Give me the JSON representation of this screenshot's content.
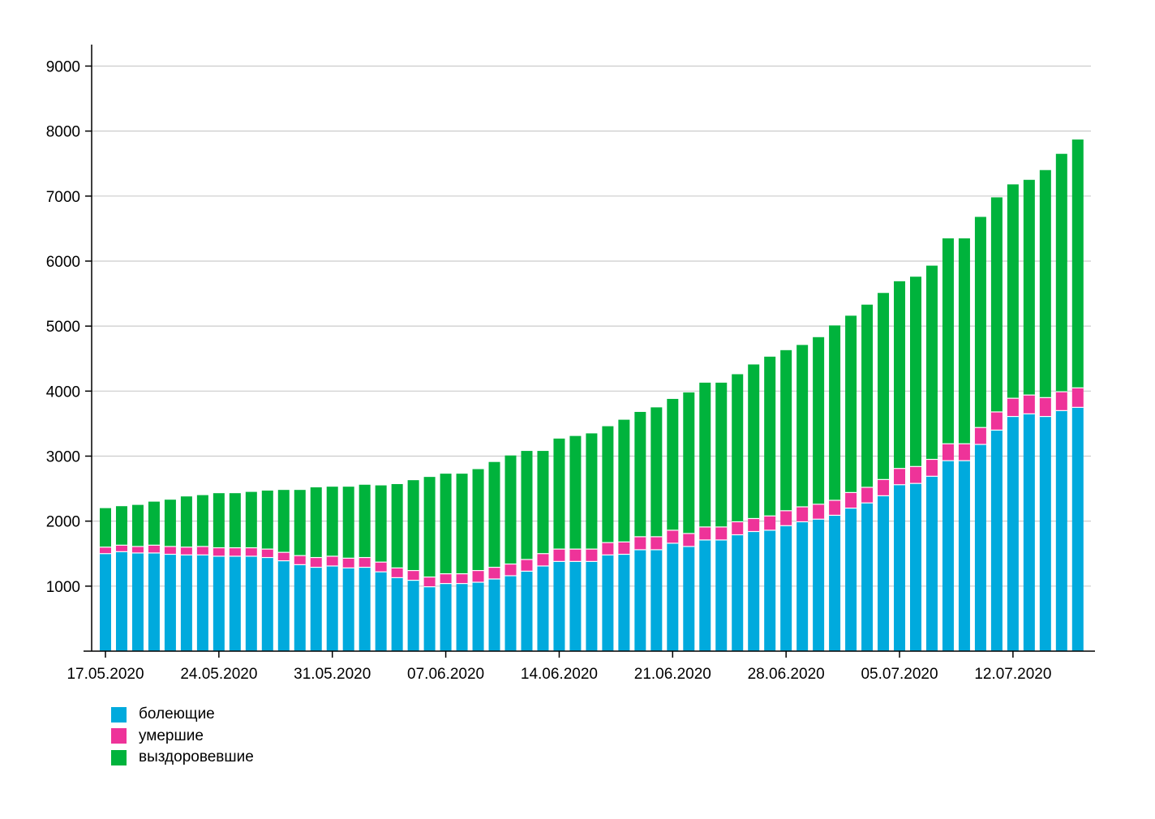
{
  "chart_data": {
    "type": "bar",
    "stacked": true,
    "title": "",
    "xlabel": "",
    "ylabel": "",
    "ylim": [
      0,
      9500
    ],
    "yticks": [
      1000,
      2000,
      3000,
      4000,
      5000,
      6000,
      7000,
      8000,
      9000
    ],
    "grid": "horizontal",
    "legend_position": "bottom-left",
    "x_tick_labels": [
      "17.05.2020",
      "24.05.2020",
      "31.05.2020",
      "07.06.2020",
      "14.06.2020",
      "21.06.2020",
      "28.06.2020",
      "05.07.2020",
      "12.07.2020"
    ],
    "x_tick_every": 7,
    "categories": [
      "17.05.2020",
      "18.05.2020",
      "19.05.2020",
      "20.05.2020",
      "21.05.2020",
      "22.05.2020",
      "23.05.2020",
      "24.05.2020",
      "25.05.2020",
      "26.05.2020",
      "27.05.2020",
      "28.05.2020",
      "29.05.2020",
      "30.05.2020",
      "31.05.2020",
      "01.06.2020",
      "02.06.2020",
      "03.06.2020",
      "04.06.2020",
      "05.06.2020",
      "06.06.2020",
      "07.06.2020",
      "08.06.2020",
      "09.06.2020",
      "10.06.2020",
      "11.06.2020",
      "12.06.2020",
      "13.06.2020",
      "14.06.2020",
      "15.06.2020",
      "16.06.2020",
      "17.06.2020",
      "18.06.2020",
      "19.06.2020",
      "20.06.2020",
      "21.06.2020",
      "22.06.2020",
      "23.06.2020",
      "24.06.2020",
      "25.06.2020",
      "26.06.2020",
      "27.06.2020",
      "28.06.2020",
      "29.06.2020",
      "30.06.2020",
      "01.07.2020",
      "02.07.2020",
      "03.07.2020",
      "04.07.2020",
      "05.07.2020",
      "06.07.2020",
      "07.07.2020",
      "08.07.2020",
      "09.07.2020",
      "10.07.2020",
      "11.07.2020",
      "12.07.2020",
      "13.07.2020",
      "14.07.2020",
      "15.07.2020",
      "16.07.2020"
    ],
    "series": [
      {
        "name": "болеющие",
        "color": "#00aadd",
        "values": [
          1500,
          1530,
          1510,
          1510,
          1490,
          1480,
          1480,
          1460,
          1460,
          1460,
          1440,
          1390,
          1330,
          1290,
          1310,
          1280,
          1290,
          1220,
          1130,
          1090,
          990,
          1040,
          1040,
          1060,
          1110,
          1160,
          1230,
          1310,
          1380,
          1380,
          1380,
          1480,
          1490,
          1560,
          1560,
          1660,
          1610,
          1710,
          1710,
          1790,
          1840,
          1860,
          1930,
          1990,
          2030,
          2090,
          2200,
          2280,
          2390,
          2560,
          2580,
          2690,
          2930,
          2930,
          3180,
          3400,
          3610,
          3650,
          3610,
          3700,
          3750
        ]
      },
      {
        "name": "умершие",
        "color": "#ee3399",
        "values": [
          100,
          100,
          100,
          120,
          120,
          120,
          130,
          130,
          130,
          130,
          130,
          130,
          140,
          150,
          150,
          150,
          150,
          150,
          150,
          150,
          150,
          150,
          150,
          180,
          180,
          180,
          180,
          190,
          190,
          190,
          190,
          190,
          190,
          200,
          200,
          200,
          200,
          200,
          200,
          200,
          200,
          220,
          230,
          230,
          230,
          230,
          240,
          240,
          250,
          250,
          260,
          260,
          260,
          260,
          260,
          280,
          280,
          290,
          290,
          290,
          300
        ]
      },
      {
        "name": "выздоровевшие",
        "color": "#00b33c",
        "values": [
          600,
          600,
          640,
          670,
          720,
          780,
          790,
          840,
          840,
          860,
          900,
          960,
          1010,
          1080,
          1070,
          1100,
          1120,
          1180,
          1290,
          1390,
          1540,
          1540,
          1540,
          1560,
          1620,
          1670,
          1670,
          1580,
          1700,
          1740,
          1780,
          1790,
          1880,
          1920,
          1990,
          2020,
          2170,
          2220,
          2220,
          2270,
          2370,
          2450,
          2470,
          2490,
          2570,
          2690,
          2720,
          2810,
          2870,
          2880,
          2920,
          2980,
          3160,
          3160,
          3240,
          3300,
          3290,
          3310,
          3500,
          3660,
          3820
        ]
      }
    ]
  }
}
